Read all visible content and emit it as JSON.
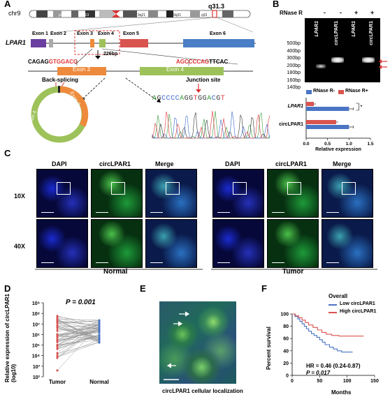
{
  "panels": {
    "A": "A",
    "B": "B",
    "C": "C",
    "D": "D",
    "E": "E",
    "F": "F"
  },
  "A": {
    "chr": "chr9",
    "band": "q31.3",
    "ideogram_bands": [
      "p21",
      "9p13",
      "9q21",
      "9q31",
      "q33"
    ],
    "gene": "LPAR1",
    "exons": [
      "Exon 1",
      "Exon 2",
      "Exon 3",
      "Exon 4",
      "Exon 5",
      "Exon 6"
    ],
    "bp": "226bp",
    "seq_left_black": "CAGAG",
    "seq_left_red": "GTGGACG",
    "seq_right_red": "AGCCCCAG",
    "seq_right_black": "TTCAC",
    "exon3": "Exon 3",
    "exon4": "Exon 4",
    "back_splicing": "Back-splicing",
    "junction_site": "Junction site",
    "junction_seq": [
      "A",
      "G",
      "C",
      "C",
      "C",
      "C",
      "A",
      "G",
      "G",
      "T",
      "G",
      "G",
      "A",
      "C",
      "G",
      "T"
    ],
    "ring_exon3": "Exon 3",
    "ring_exon4": "Exon 4"
  },
  "B": {
    "rnase_label": "RNase R",
    "signs": [
      "-",
      "-",
      "+",
      "+"
    ],
    "lanes": [
      "LPAR1",
      "circLPAR1",
      "LPAR1",
      "circLPAR1"
    ],
    "ladder": [
      "500bp",
      "400bp",
      "300bp",
      "200bp",
      "180bp",
      "160bp",
      "140bp"
    ],
    "legend": [
      "RNase R-",
      "RNase R+"
    ],
    "colors": {
      "minus": "#4a74c4",
      "plus": "#d9534f"
    }
  },
  "chart_data": {
    "type": "bar",
    "orientation": "horizontal",
    "categories": [
      "LPAR1",
      "circLPAR1"
    ],
    "series": [
      {
        "name": "RNase R-",
        "values": [
          1.0,
          1.0
        ]
      },
      {
        "name": "RNase R+",
        "values": [
          0.18,
          0.7
        ]
      }
    ],
    "xlabel": "Relative expression",
    "xticks": [
      "0.0",
      "0.5",
      "1.0",
      "1.5"
    ],
    "xlim": [
      0,
      1.5
    ],
    "significance": "*"
  },
  "C": {
    "headers_normal": [
      "DAPI",
      "circLPAR1",
      "Merge"
    ],
    "headers_tumor": [
      "DAPI",
      "circLPAR1",
      "Merge"
    ],
    "rows": [
      "10X",
      "40X"
    ],
    "group_normal": "Normal",
    "group_tumor": "Tumor"
  },
  "D": {
    "ylabel": "Relative expression of circLPAR1 (log10)",
    "p": "P = 0.001",
    "yticks": [
      "10⁹",
      "10⁸",
      "10⁷",
      "10⁶",
      "10⁵",
      "10⁴",
      "10³",
      "10²"
    ],
    "xcats": [
      "Tumor",
      "Normal"
    ]
  },
  "E": {
    "caption": "circLPAR1 cellular localization"
  },
  "F": {
    "title": "Overall",
    "legend": [
      "Low circLPAR1",
      "High circLPAR1"
    ],
    "colors": {
      "low": "#4a74c4",
      "high": "#d9534f"
    },
    "ylabel": "Percent survival",
    "xlabel": "Months",
    "yticks": [
      "100",
      "80",
      "60",
      "40",
      "20",
      "0"
    ],
    "xticks": [
      "0",
      "50",
      "100",
      "150"
    ],
    "hr": "HR = 0.46 (0.24-0.87)",
    "p": "P = 0.017"
  }
}
